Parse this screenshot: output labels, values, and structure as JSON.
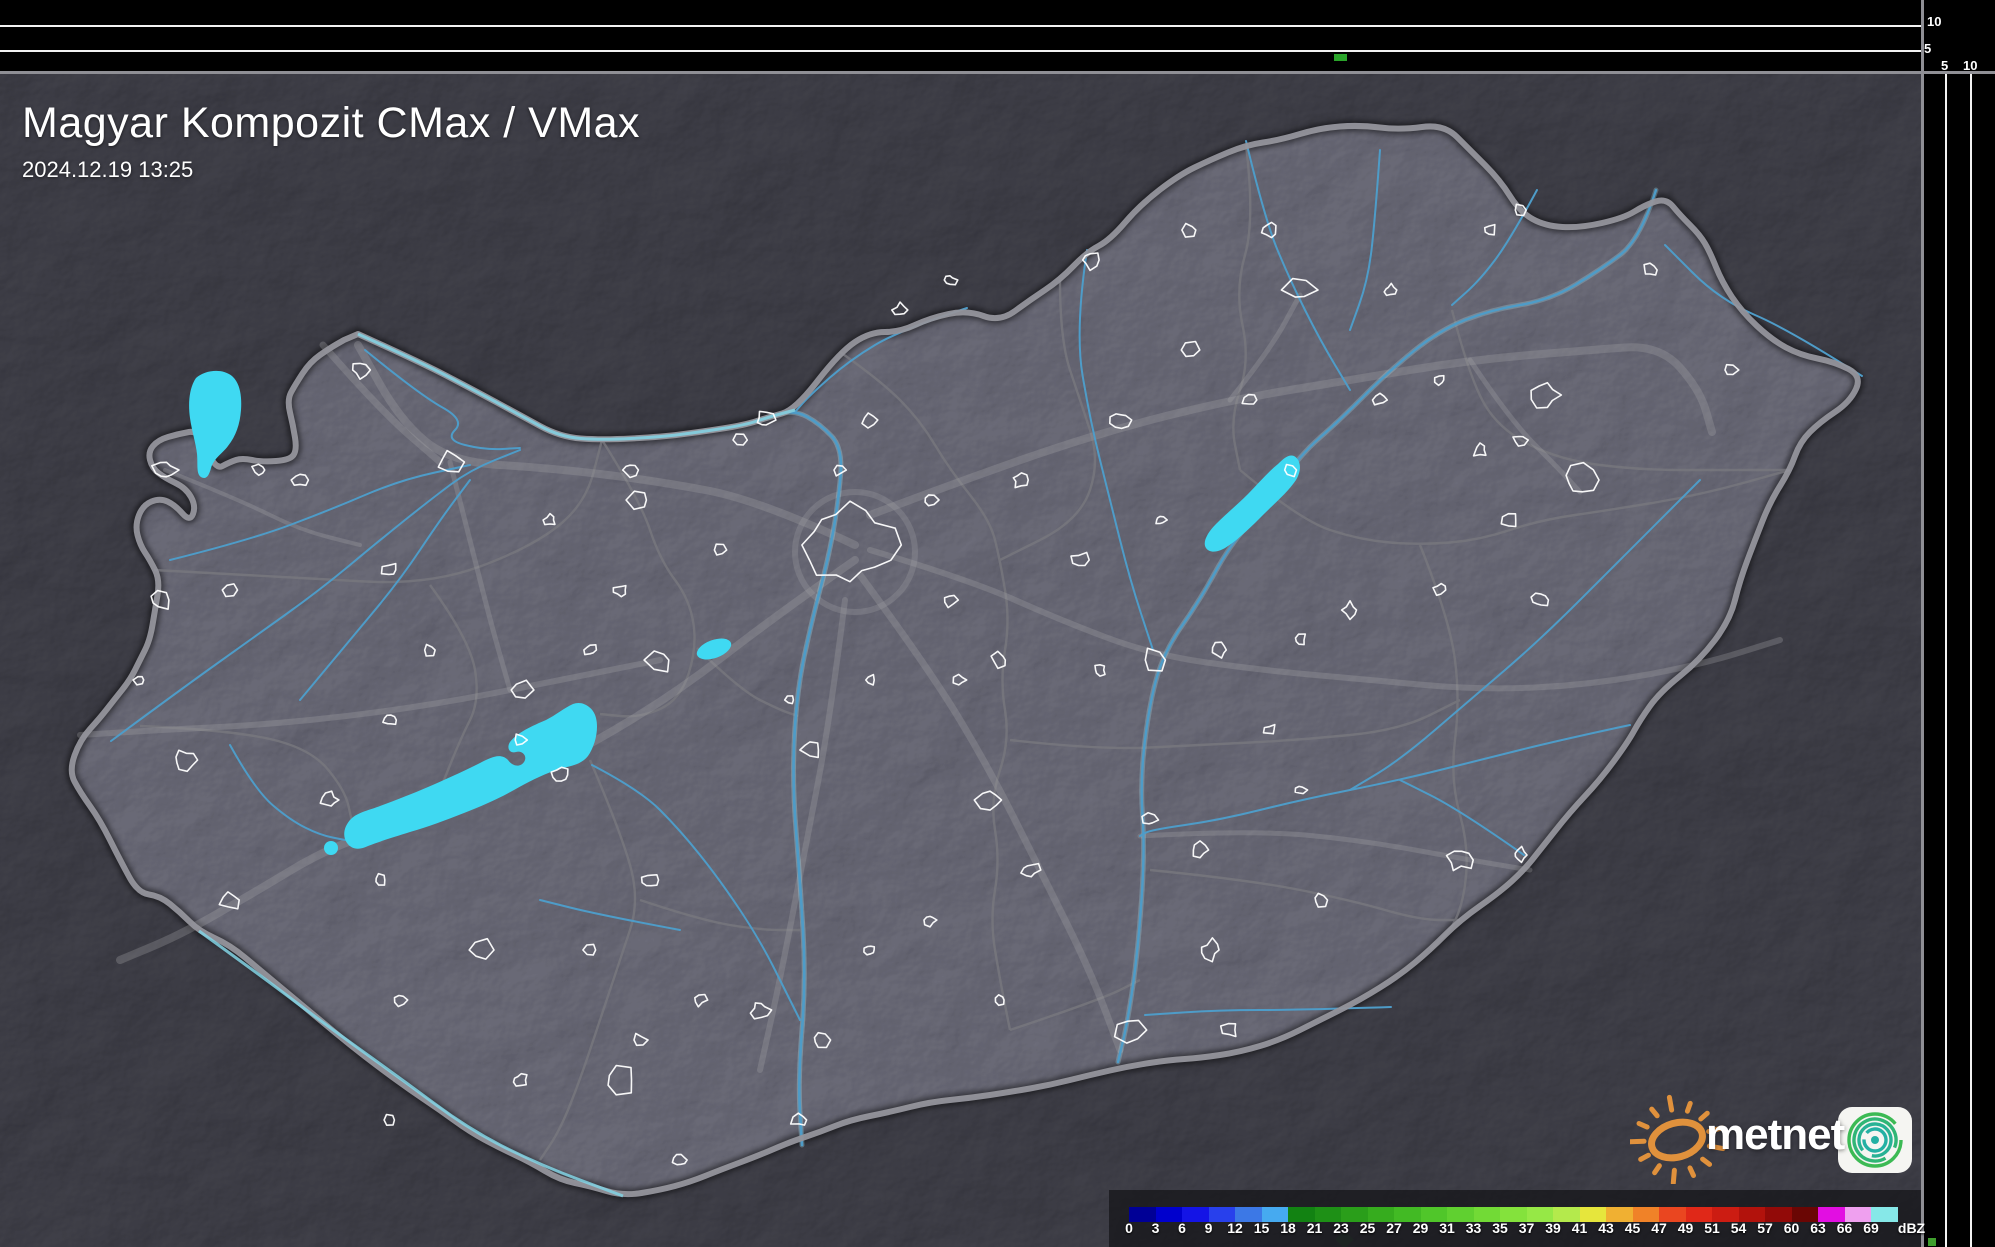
{
  "header": {
    "title": "Magyar Kompozit CMax / VMax",
    "timestamp": "2024.12.19 13:25"
  },
  "timeline_panel": {
    "y_axis_labels": [
      "10",
      "5"
    ],
    "marker_color": "#2aa42a"
  },
  "right_scale_panel": {
    "x_axis_labels": [
      "5",
      "10"
    ],
    "indicator_color": "#3f9e2d"
  },
  "legend": {
    "unit_label": "dBZ",
    "ticks": [
      "0",
      "3",
      "6",
      "9",
      "12",
      "15",
      "18",
      "21",
      "23",
      "25",
      "27",
      "29",
      "31",
      "33",
      "35",
      "37",
      "39",
      "41",
      "43",
      "45",
      "47",
      "49",
      "51",
      "54",
      "57",
      "60",
      "63",
      "66",
      "69"
    ],
    "colors": [
      "#000096",
      "#0000cd",
      "#1414e6",
      "#2840ec",
      "#3c78e6",
      "#46aaf0",
      "#128212",
      "#1e9016",
      "#2a9e1a",
      "#36ac1e",
      "#42ba24",
      "#50c62a",
      "#60d030",
      "#72da36",
      "#84e23c",
      "#96e846",
      "#b4ea4c",
      "#e6e63c",
      "#f0b032",
      "#f08228",
      "#ea4620",
      "#e02818",
      "#cc1c12",
      "#b2120c",
      "#920a08",
      "#6a0604",
      "#e20ee2",
      "#efa0ef",
      "#86e8e8"
    ],
    "marker_color": "#2f7c35"
  },
  "branding": {
    "wordmark": "metnet",
    "sun_color": "#e0913c",
    "spiral_colors": [
      "#3cba54",
      "#30b676",
      "#28b295",
      "#23b0a4"
    ]
  },
  "map_colors": {
    "lake": "#3fd9f2",
    "river": "#4e9cc8",
    "major_river_halo": "#9fd6e8",
    "border_river": "#82d4e4",
    "country_border": "#95959c",
    "county_border": "#78787e",
    "road": "#a5a5aa",
    "city_outline": "#ffffff",
    "terrain_base": "#26262a"
  }
}
